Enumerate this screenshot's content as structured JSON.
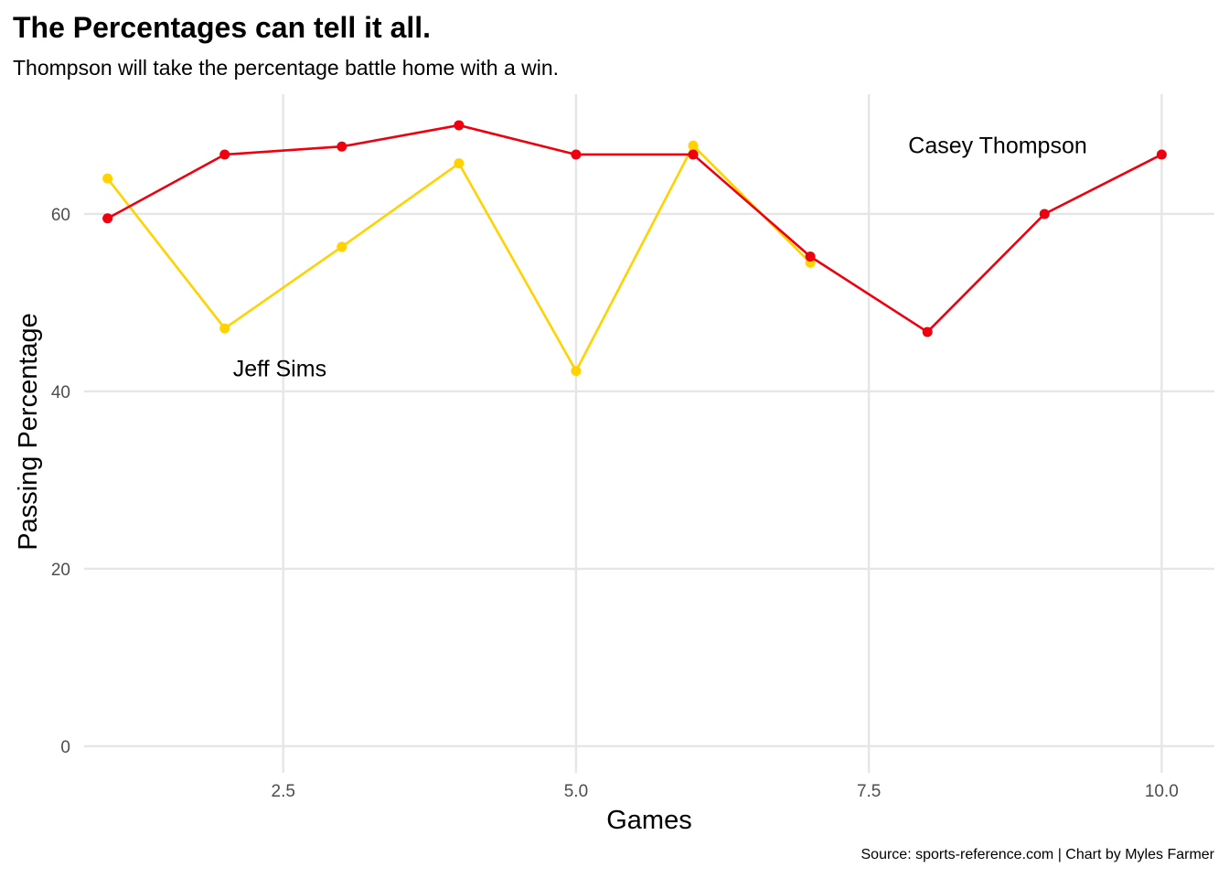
{
  "chart_data": {
    "type": "line",
    "title": "The Percentages can tell it all.",
    "subtitle": "Thompson will take the percentage battle home with a win.",
    "caption": "Source: sports-reference.com | Chart by Myles Farmer",
    "xlabel": "Games",
    "ylabel": "Passing Percentage",
    "xlim": [
      0.8,
      10.45
    ],
    "ylim": [
      -3,
      73.5
    ],
    "x_ticks": [
      2.5,
      5.0,
      7.5,
      10.0
    ],
    "x_tick_labels": [
      "2.5",
      "5.0",
      "7.5",
      "10.0"
    ],
    "y_ticks": [
      0,
      20,
      40,
      60
    ],
    "y_tick_labels": [
      "0",
      "20",
      "40",
      "60"
    ],
    "grid": true,
    "legend": "none",
    "series": [
      {
        "name": "Jeff Sims",
        "color": "#FFD200",
        "x": [
          1,
          2,
          3,
          4,
          5,
          6,
          7
        ],
        "values": [
          64.0,
          47.1,
          56.3,
          65.7,
          42.3,
          67.7,
          54.5
        ]
      },
      {
        "name": "Casey Thompson",
        "color": "#F0000F",
        "x": [
          1,
          2,
          3,
          4,
          5,
          6,
          7,
          8,
          9,
          10
        ],
        "values": [
          59.5,
          66.7,
          67.6,
          70.0,
          66.7,
          66.7,
          55.2,
          46.7,
          60.0,
          66.7
        ]
      }
    ],
    "annotations": [
      {
        "text": "Jeff Sims",
        "x": 2.47,
        "y": 42.6
      },
      {
        "text": "Casey Thompson",
        "x": 8.6,
        "y": 67.8
      }
    ]
  }
}
